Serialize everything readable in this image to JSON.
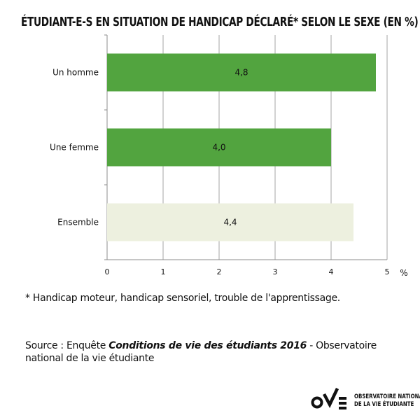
{
  "title": "ÉTUDIANT-E-S EN SITUATION DE HANDICAP DÉCLARÉ* SELON LE SEXE (EN %)",
  "chart_data": {
    "type": "bar",
    "orientation": "horizontal",
    "categories": [
      "Un homme",
      "Une femme",
      "Ensemble"
    ],
    "values": [
      4.8,
      4.0,
      4.4
    ],
    "value_labels": [
      "4,8",
      "4,0",
      "4,4"
    ],
    "x_ticks": [
      "0",
      "1",
      "2",
      "3",
      "4",
      "5"
    ],
    "x_unit": "%",
    "xlim": [
      0,
      5
    ],
    "grid": true,
    "bar_colors": [
      "#52a43f",
      "#52a43f",
      "#edf0df"
    ]
  },
  "footnote": "* Handicap moteur, handicap sensoriel, trouble de l'apprentissage.",
  "source": {
    "prefix": "Source : Enquête ",
    "title": "Conditions de vie des étudiants 2016",
    "suffix": " - Observatoire national de la vie étudiante"
  },
  "logo": {
    "line1": "OBSERVATOIRE NATIONAL",
    "line2": "DE LA VIE ÉTUDIANTE",
    "icon": "ove-logo-icon"
  }
}
